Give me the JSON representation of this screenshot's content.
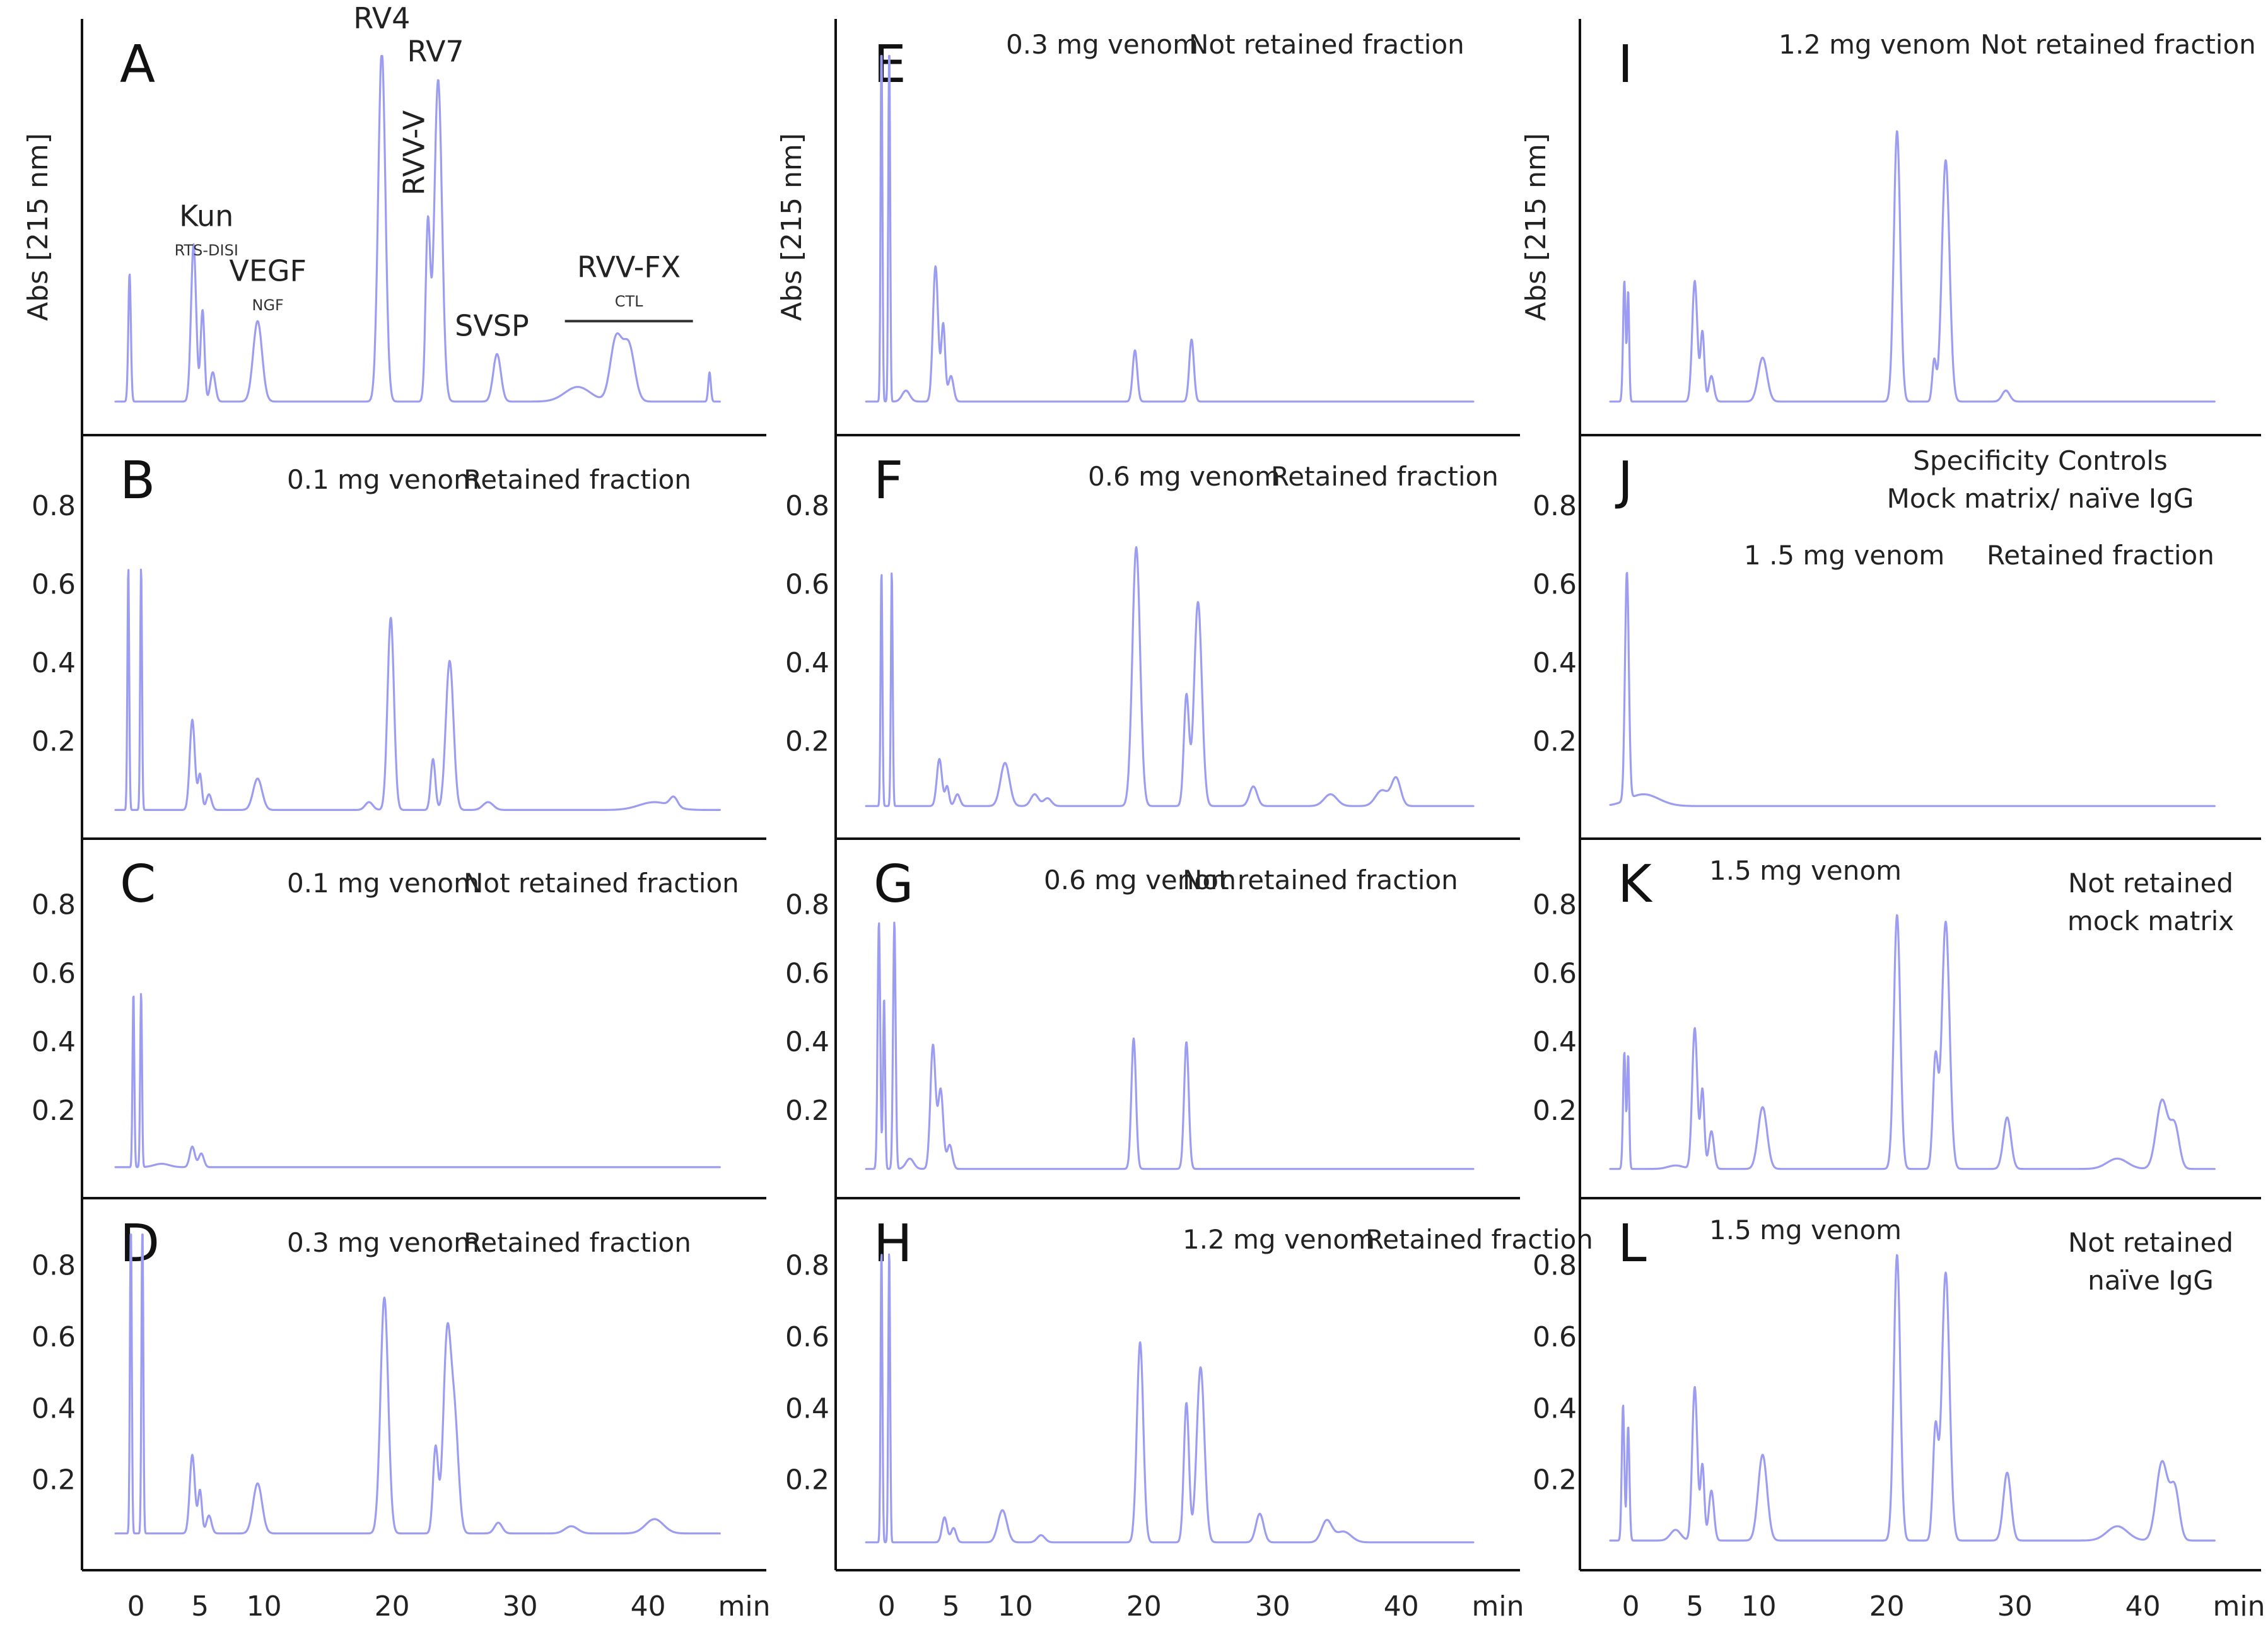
{
  "chart_data": [
    {
      "id": "A",
      "type": "line",
      "panel_label": "A",
      "caption": [],
      "ylabel": "Abs [215 nm]",
      "yticks": [],
      "ylim": [
        0,
        1
      ],
      "xlim": [
        -2,
        48
      ],
      "peak_labels": [
        {
          "text": "Kun",
          "x": 5.5,
          "y": 0.52,
          "size": "big"
        },
        {
          "text": "RTS-DISI",
          "x": 5.5,
          "y": 0.44,
          "size": "small"
        },
        {
          "text": "VEGF",
          "x": 10.3,
          "y": 0.37,
          "size": "big"
        },
        {
          "text": "NGF",
          "x": 10.3,
          "y": 0.29,
          "size": "small"
        },
        {
          "text": "RV4",
          "x": 19.2,
          "y": 1.06,
          "size": "big"
        },
        {
          "text": "RV7",
          "x": 23.4,
          "y": 0.97,
          "size": "big"
        },
        {
          "text": "RVV-V",
          "x": 22.5,
          "y": 0.72,
          "size": "big",
          "rotate": true
        },
        {
          "text": "SVSP",
          "x": 27.8,
          "y": 0.22,
          "size": "big"
        },
        {
          "text": "RVV-FX",
          "x": 38.5,
          "y": 0.38,
          "size": "big"
        },
        {
          "text": "CTL",
          "x": 38.5,
          "y": 0.3,
          "size": "small"
        }
      ],
      "bracket": [
        33.5,
        43.5,
        0.26
      ],
      "series": [
        {
          "baseline": 0.04,
          "peaks": [
            [
              -0.5,
              0.35,
              0.1
            ],
            [
              4.5,
              0.43,
              0.2
            ],
            [
              5.2,
              0.25,
              0.15
            ],
            [
              6,
              0.08,
              0.2
            ],
            [
              9.5,
              0.22,
              0.35
            ],
            [
              19.2,
              0.96,
              0.28
            ],
            [
              22.8,
              0.48,
              0.18
            ],
            [
              23.6,
              0.88,
              0.3
            ],
            [
              28.2,
              0.13,
              0.3
            ],
            [
              34.5,
              0.04,
              1
            ],
            [
              37.5,
              0.17,
              0.45
            ],
            [
              38.5,
              0.15,
              0.45
            ],
            [
              44.8,
              0.08,
              0.1
            ]
          ]
        }
      ]
    },
    {
      "id": "B",
      "type": "line",
      "panel_label": "B",
      "caption": [
        "0.1 mg venom",
        "Retained fraction"
      ],
      "yticks": [
        "0.2",
        "0.4",
        "0.6",
        "0.8"
      ],
      "ylim": [
        0,
        0.9
      ],
      "xlim": [
        -2,
        48
      ],
      "series": [
        {
          "baseline": 0.025,
          "peaks": [
            [
              -0.6,
              0.62,
              0.07
            ],
            [
              0.4,
              0.62,
              0.07
            ],
            [
              4.4,
              0.23,
              0.2
            ],
            [
              5.0,
              0.09,
              0.15
            ],
            [
              5.7,
              0.04,
              0.2
            ],
            [
              9.5,
              0.08,
              0.35
            ],
            [
              18.2,
              0.02,
              0.3
            ],
            [
              19.9,
              0.49,
              0.25
            ],
            [
              23.2,
              0.13,
              0.18
            ],
            [
              24.5,
              0.38,
              0.3
            ],
            [
              27.5,
              0.02,
              0.4
            ],
            [
              40.5,
              0.02,
              1.2
            ],
            [
              42,
              0.025,
              0.3
            ]
          ]
        }
      ]
    },
    {
      "id": "C",
      "type": "line",
      "panel_label": "C",
      "caption": [
        "0.1 mg venom",
        "Not retained fraction"
      ],
      "yticks": [
        "0.2",
        "0.4",
        "0.6",
        "0.8"
      ],
      "ylim": [
        0,
        0.9
      ],
      "xlim": [
        -2,
        48
      ],
      "series": [
        {
          "baseline": 0.035,
          "peaks": [
            [
              -0.2,
              0.51,
              0.07
            ],
            [
              0.4,
              0.51,
              0.07
            ],
            [
              2,
              0.01,
              0.6
            ],
            [
              4.4,
              0.06,
              0.2
            ],
            [
              5.1,
              0.04,
              0.2
            ]
          ]
        }
      ]
    },
    {
      "id": "D",
      "type": "line",
      "panel_label": "D",
      "caption": [
        "0.3 mg venom",
        "Retained fraction"
      ],
      "yticks": [
        "0.2",
        "0.4",
        "0.6",
        "0.8"
      ],
      "ylim": [
        0,
        0.9
      ],
      "xlim": [
        -2,
        48
      ],
      "series": [
        {
          "baseline": 0.05,
          "peaks": [
            [
              -0.4,
              0.92,
              0.07
            ],
            [
              0.5,
              0.92,
              0.07
            ],
            [
              4.4,
              0.22,
              0.2
            ],
            [
              5.0,
              0.12,
              0.15
            ],
            [
              5.7,
              0.05,
              0.2
            ],
            [
              9.5,
              0.14,
              0.35
            ],
            [
              19.4,
              0.66,
              0.3
            ],
            [
              23.4,
              0.24,
              0.2
            ],
            [
              24.3,
              0.54,
              0.3
            ],
            [
              24.9,
              0.3,
              0.3
            ],
            [
              28.3,
              0.03,
              0.3
            ],
            [
              34,
              0.02,
              0.5
            ],
            [
              40.5,
              0.04,
              0.7
            ]
          ]
        }
      ]
    },
    {
      "id": "E",
      "type": "line",
      "panel_label": "E",
      "caption": [
        "0.3 mg venom",
        "Not retained fraction"
      ],
      "ylabel": "Abs [215 nm]",
      "yticks": [],
      "ylim": [
        0,
        1
      ],
      "xlim": [
        -2,
        48
      ],
      "series": [
        {
          "baseline": 0.04,
          "peaks": [
            [
              -0.4,
              1.0,
              0.07
            ],
            [
              0.2,
              1.0,
              0.07
            ],
            [
              1.5,
              0.03,
              0.3
            ],
            [
              3.8,
              0.37,
              0.2
            ],
            [
              4.4,
              0.21,
              0.15
            ],
            [
              5.0,
              0.07,
              0.2
            ],
            [
              19.3,
              0.14,
              0.18
            ],
            [
              23.7,
              0.17,
              0.18
            ]
          ]
        }
      ]
    },
    {
      "id": "F",
      "type": "line",
      "panel_label": "F",
      "caption": [
        "0.6 mg venom",
        "Retained fraction"
      ],
      "yticks": [
        "0.2",
        "0.4",
        "0.6",
        "0.8"
      ],
      "ylim": [
        0,
        0.9
      ],
      "xlim": [
        -2,
        48
      ],
      "series": [
        {
          "baseline": 0.035,
          "peaks": [
            [
              -0.4,
              0.6,
              0.07
            ],
            [
              0.4,
              0.6,
              0.07
            ],
            [
              4.1,
              0.12,
              0.2
            ],
            [
              4.7,
              0.05,
              0.15
            ],
            [
              5.5,
              0.03,
              0.2
            ],
            [
              9.2,
              0.11,
              0.35
            ],
            [
              11.5,
              0.03,
              0.3
            ],
            [
              12.5,
              0.02,
              0.3
            ],
            [
              19.4,
              0.66,
              0.3
            ],
            [
              23.3,
              0.28,
              0.2
            ],
            [
              24.2,
              0.52,
              0.3
            ],
            [
              28.5,
              0.05,
              0.3
            ],
            [
              34.5,
              0.03,
              0.5
            ],
            [
              38.5,
              0.04,
              0.5
            ],
            [
              39.6,
              0.07,
              0.35
            ]
          ]
        }
      ]
    },
    {
      "id": "G",
      "type": "line",
      "panel_label": "G",
      "caption": [
        "0.6 mg venom",
        "Not retained fraction"
      ],
      "yticks": [
        "0.2",
        "0.4",
        "0.6",
        "0.8"
      ],
      "ylim": [
        0,
        0.9
      ],
      "xlim": [
        -2,
        48
      ],
      "series": [
        {
          "baseline": 0.03,
          "peaks": [
            [
              -0.6,
              0.72,
              0.1
            ],
            [
              -0.2,
              0.5,
              0.08
            ],
            [
              0.6,
              0.72,
              0.1
            ],
            [
              1.8,
              0.03,
              0.3
            ],
            [
              3.6,
              0.36,
              0.2
            ],
            [
              4.2,
              0.23,
              0.2
            ],
            [
              4.9,
              0.07,
              0.2
            ],
            [
              19.2,
              0.38,
              0.18
            ],
            [
              23.3,
              0.37,
              0.18
            ]
          ]
        }
      ]
    },
    {
      "id": "H",
      "type": "line",
      "panel_label": "H",
      "caption": [
        "1.2 mg venom",
        "Retained fraction"
      ],
      "yticks": [
        "0.2",
        "0.4",
        "0.6",
        "0.8"
      ],
      "ylim": [
        0,
        0.9
      ],
      "xlim": [
        -2,
        48
      ],
      "series": [
        {
          "baseline": 0.025,
          "peaks": [
            [
              -0.4,
              0.82,
              0.07
            ],
            [
              0.2,
              0.82,
              0.07
            ],
            [
              4.5,
              0.07,
              0.2
            ],
            [
              5.2,
              0.04,
              0.2
            ],
            [
              9,
              0.09,
              0.35
            ],
            [
              12,
              0.02,
              0.3
            ],
            [
              19.7,
              0.56,
              0.25
            ],
            [
              23.3,
              0.39,
              0.2
            ],
            [
              24.4,
              0.49,
              0.3
            ],
            [
              29,
              0.08,
              0.3
            ],
            [
              34.2,
              0.06,
              0.4
            ],
            [
              35.5,
              0.03,
              0.6
            ]
          ]
        }
      ]
    },
    {
      "id": "I",
      "type": "line",
      "panel_label": "I",
      "caption": [
        "1.2 mg venom",
        "Not retained fraction"
      ],
      "ylabel": "Abs [215 nm]",
      "yticks": [],
      "ylim": [
        0,
        1
      ],
      "xlim": [
        -2,
        48
      ],
      "series": [
        {
          "baseline": 0.04,
          "peaks": [
            [
              -0.5,
              0.33,
              0.1
            ],
            [
              -0.2,
              0.3,
              0.08
            ],
            [
              5.0,
              0.33,
              0.2
            ],
            [
              5.6,
              0.19,
              0.15
            ],
            [
              6.3,
              0.07,
              0.2
            ],
            [
              10.3,
              0.12,
              0.35
            ],
            [
              20.8,
              0.74,
              0.25
            ],
            [
              23.7,
              0.11,
              0.15
            ],
            [
              24.6,
              0.66,
              0.3
            ],
            [
              29.3,
              0.03,
              0.3
            ]
          ]
        }
      ]
    },
    {
      "id": "J",
      "type": "line",
      "panel_label": "J",
      "caption": [
        "1 .5 mg venom",
        "Retained fraction"
      ],
      "header": [
        "Specificity Controls",
        "Mock matrix/ naïve IgG"
      ],
      "yticks": [
        "0.2",
        "0.4",
        "0.6",
        "0.8"
      ],
      "ylim": [
        0,
        0.9
      ],
      "xlim": [
        -2,
        48
      ],
      "series": [
        {
          "baseline": 0.035,
          "peaks": [
            [
              -0.3,
              0.58,
              0.15
            ],
            [
              1.0,
              0.03,
              1.2
            ]
          ]
        }
      ]
    },
    {
      "id": "K",
      "type": "line",
      "panel_label": "K",
      "caption": [
        "1.5 mg venom",
        "Not retained",
        "mock matrix"
      ],
      "yticks": [
        "0.2",
        "0.4",
        "0.6",
        "0.8"
      ],
      "ylim": [
        0,
        0.9
      ],
      "xlim": [
        -2,
        48
      ],
      "series": [
        {
          "baseline": 0.03,
          "peaks": [
            [
              -0.5,
              0.34,
              0.1
            ],
            [
              -0.2,
              0.33,
              0.08
            ],
            [
              3.5,
              0.01,
              0.6
            ],
            [
              5.0,
              0.41,
              0.2
            ],
            [
              5.6,
              0.23,
              0.15
            ],
            [
              6.3,
              0.11,
              0.2
            ],
            [
              10.3,
              0.18,
              0.35
            ],
            [
              20.8,
              0.74,
              0.25
            ],
            [
              23.8,
              0.32,
              0.2
            ],
            [
              24.6,
              0.72,
              0.3
            ],
            [
              29.4,
              0.15,
              0.3
            ],
            [
              38,
              0.03,
              0.8
            ],
            [
              41.5,
              0.2,
              0.45
            ],
            [
              42.5,
              0.12,
              0.35
            ]
          ]
        }
      ]
    },
    {
      "id": "L",
      "type": "line",
      "panel_label": "L",
      "caption": [
        "1.5 mg venom",
        "Not retained",
        "naïve IgG"
      ],
      "yticks": [
        "0.2",
        "0.4",
        "0.6",
        "0.8"
      ],
      "ylim": [
        0,
        0.9
      ],
      "xlim": [
        -2,
        48
      ],
      "series": [
        {
          "baseline": 0.03,
          "peaks": [
            [
              -0.6,
              0.38,
              0.1
            ],
            [
              -0.2,
              0.32,
              0.1
            ],
            [
              3.5,
              0.03,
              0.4
            ],
            [
              5.0,
              0.43,
              0.2
            ],
            [
              5.6,
              0.21,
              0.15
            ],
            [
              6.3,
              0.14,
              0.2
            ],
            [
              10.3,
              0.24,
              0.35
            ],
            [
              20.8,
              0.8,
              0.25
            ],
            [
              23.8,
              0.31,
              0.2
            ],
            [
              24.6,
              0.75,
              0.3
            ],
            [
              29.4,
              0.19,
              0.3
            ],
            [
              38,
              0.04,
              0.8
            ],
            [
              41.5,
              0.22,
              0.45
            ],
            [
              42.5,
              0.14,
              0.35
            ]
          ]
        }
      ]
    }
  ],
  "x_axis": {
    "ticks": [
      0,
      5,
      10,
      20,
      30,
      40
    ],
    "tick_labels": [
      "0",
      "5",
      "10",
      "20",
      "30",
      "40"
    ],
    "unit": "min"
  },
  "trace_color": "#9c9cf0"
}
